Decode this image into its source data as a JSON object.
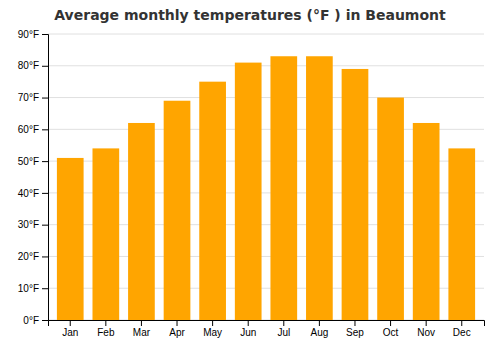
{
  "chart_data": {
    "type": "bar",
    "title": "Average monthly temperatures (°F ) in Beaumont",
    "categories": [
      "Jan",
      "Feb",
      "Mar",
      "Apr",
      "May",
      "Jun",
      "Jul",
      "Aug",
      "Sep",
      "Oct",
      "Nov",
      "Dec"
    ],
    "values": [
      51,
      54,
      62,
      69,
      75,
      81,
      83,
      83,
      79,
      70,
      62,
      54
    ],
    "color": "#FFA500",
    "ylim": [
      0,
      90
    ],
    "yticks": [
      {
        "value": 0,
        "label": "0°F"
      },
      {
        "value": 10,
        "label": "10°F"
      },
      {
        "value": 20,
        "label": "20°F"
      },
      {
        "value": 30,
        "label": "30°F"
      },
      {
        "value": 40,
        "label": "40°F"
      },
      {
        "value": 50,
        "label": "50°F"
      },
      {
        "value": 60,
        "label": "60°F"
      },
      {
        "value": 70,
        "label": "70°F"
      },
      {
        "value": 80,
        "label": "80°F"
      },
      {
        "value": 90,
        "label": "90°F"
      }
    ],
    "grid": true
  }
}
